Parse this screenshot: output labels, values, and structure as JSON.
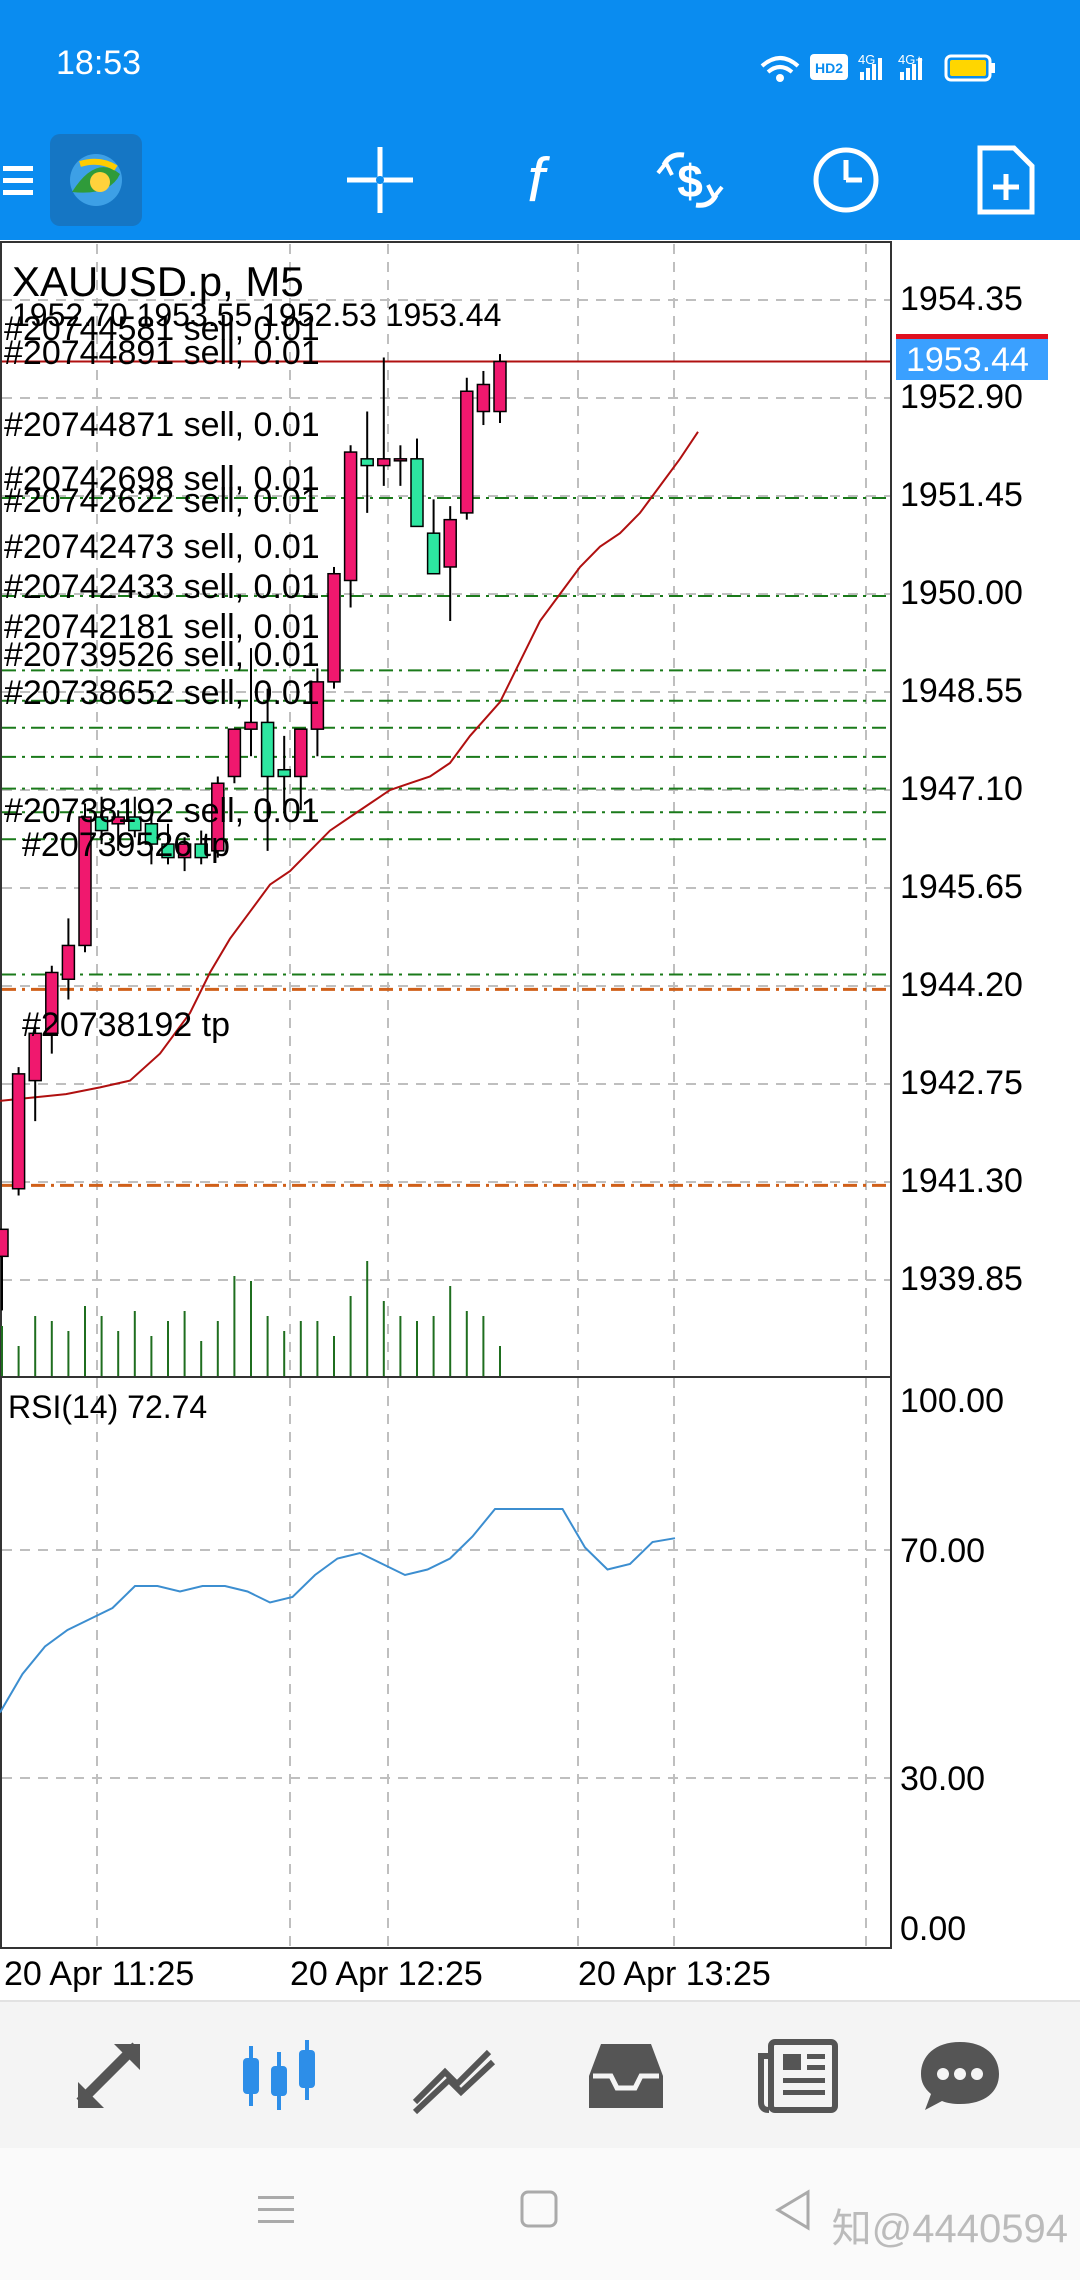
{
  "status_bar": {
    "time": "18:53",
    "icons": [
      "wifi-icon",
      "hd2-icon",
      "signal-4g-icon",
      "signal-4g-plus-icon",
      "battery-icon"
    ],
    "hd_label": "HD2",
    "net1_label": "4G",
    "net2_label": "4G+"
  },
  "toolbar": {
    "icons": [
      "menu-icon",
      "app-logo-icon",
      "crosshair-icon",
      "indicator-f-icon",
      "symbol-dollar-icon",
      "timeframe-clock-icon",
      "new-order-icon"
    ],
    "indicator_label": "f"
  },
  "chart": {
    "symbol_title": "XAUUSD.p, M5",
    "ohlc": "1952.70 1953.55 1952.53 1953.44",
    "current_price": "1953.44",
    "price_axis": [
      "1954.35",
      "1952.90",
      "1951.45",
      "1950.00",
      "1948.55",
      "1947.10",
      "1945.65",
      "1944.20",
      "1942.75",
      "1941.30",
      "1939.85"
    ],
    "orders": [
      {
        "label": "#20744581 sell, 0.01"
      },
      {
        "label": "#20744891 sell, 0.01"
      },
      {
        "label": "#20744871 sell, 0.01"
      },
      {
        "label": "#20742698 sell, 0.01"
      },
      {
        "label": "#20742622 sell, 0.01"
      },
      {
        "label": "#20742473 sell, 0.01"
      },
      {
        "label": "#20742433 sell, 0.01"
      },
      {
        "label": "#20742181 sell, 0.01"
      },
      {
        "label": "#20739526 sell, 0.01"
      },
      {
        "label": "#20738652 sell, 0.01"
      },
      {
        "label": "#20738192 sell, 0.01"
      },
      {
        "label": "#20739526 tp"
      },
      {
        "label": "#20738192 tp"
      }
    ],
    "colors": {
      "bull": "#2de6a0",
      "bear": "#f0186e",
      "ma": "#b01010",
      "grid": "#bfbfbf",
      "order_line": "#1a7a1a",
      "tp_line": "#d0601a",
      "rsi": "#3c8ed0",
      "volume": "#1f6e1f",
      "price_tag": "#3aa0ff"
    }
  },
  "rsi": {
    "label": "RSI(14) 72.74",
    "axis": [
      "100.00",
      "70.00",
      "30.00",
      "0.00"
    ]
  },
  "time_axis": [
    "20 Apr 11:25",
    "20 Apr 12:25",
    "20 Apr 13:25"
  ],
  "bottom_nav": {
    "items": [
      "quotes-icon",
      "chart-icon",
      "trade-icon",
      "history-icon",
      "news-icon",
      "messages-icon"
    ],
    "active": "chart-icon"
  },
  "system_nav": [
    "menu-nav-icon",
    "home-nav-icon",
    "back-nav-icon"
  ],
  "watermark": "知@4440594"
}
